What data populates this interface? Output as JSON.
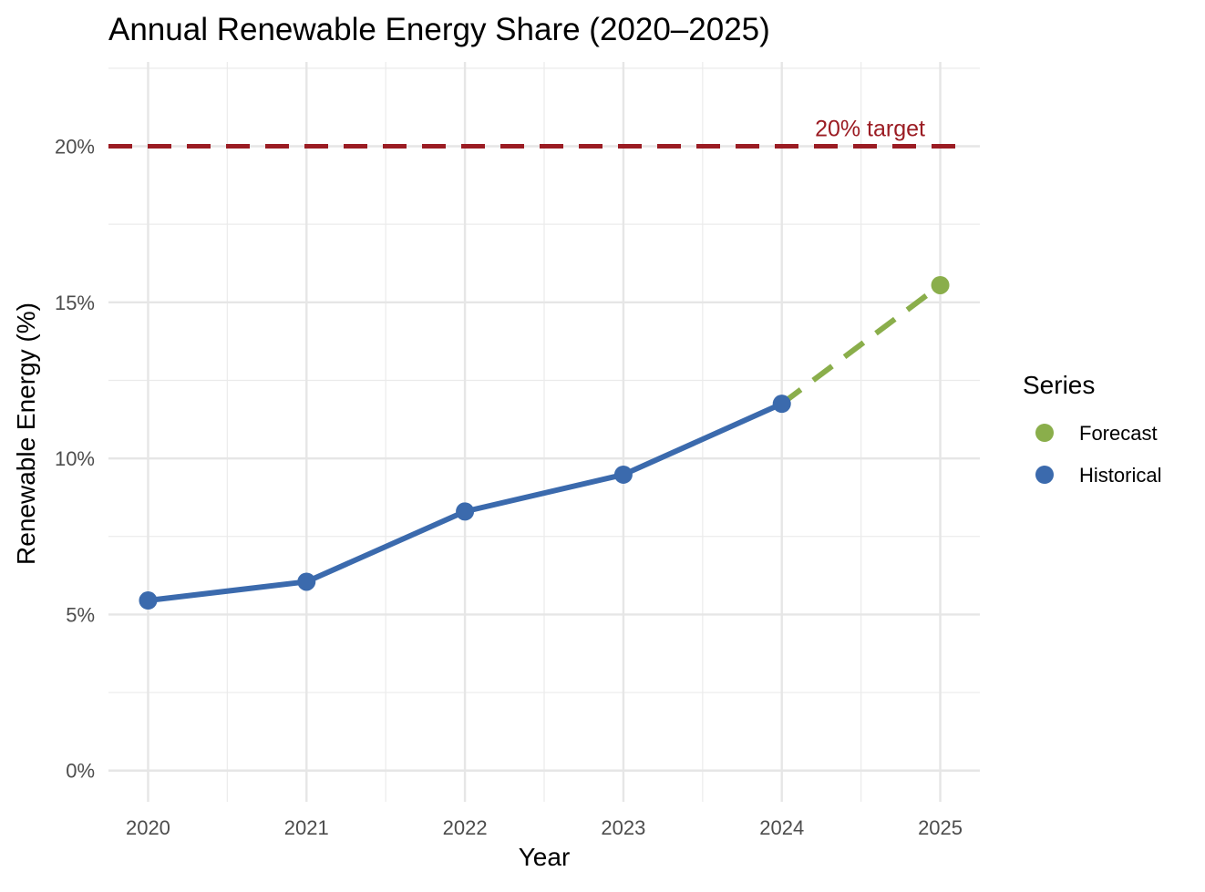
{
  "chart_data": {
    "type": "line",
    "title": "Annual Renewable Energy Share (2020–2025)",
    "xlabel": "Year",
    "ylabel": "Renewable Energy (%)",
    "x_ticks": [
      "2020",
      "2021",
      "2022",
      "2023",
      "2024",
      "2025"
    ],
    "y_ticks": [
      "0%",
      "5%",
      "10%",
      "15%",
      "20%"
    ],
    "xlim": [
      2019.75,
      2025.25
    ],
    "ylim": [
      -1,
      22.7
    ],
    "grid": true,
    "legend_position": "right",
    "legend_title": "Series",
    "series": [
      {
        "name": "Historical",
        "color": "#3b6aad",
        "line_style": "solid",
        "x": [
          2020,
          2021,
          2022,
          2023,
          2024
        ],
        "y": [
          5.45,
          6.05,
          8.3,
          9.48,
          11.75
        ]
      },
      {
        "name": "Forecast",
        "color": "#8aae4b",
        "line_style": "dashed",
        "x": [
          2024,
          2025
        ],
        "y": [
          11.75,
          15.55
        ],
        "marker_x": [
          2025
        ],
        "marker_y": [
          15.55
        ]
      }
    ],
    "legend_order": [
      "Forecast",
      "Historical"
    ],
    "reference_line": {
      "y": 20,
      "label": "20% target",
      "color": "#9b1c23",
      "line_style": "dashed"
    }
  }
}
